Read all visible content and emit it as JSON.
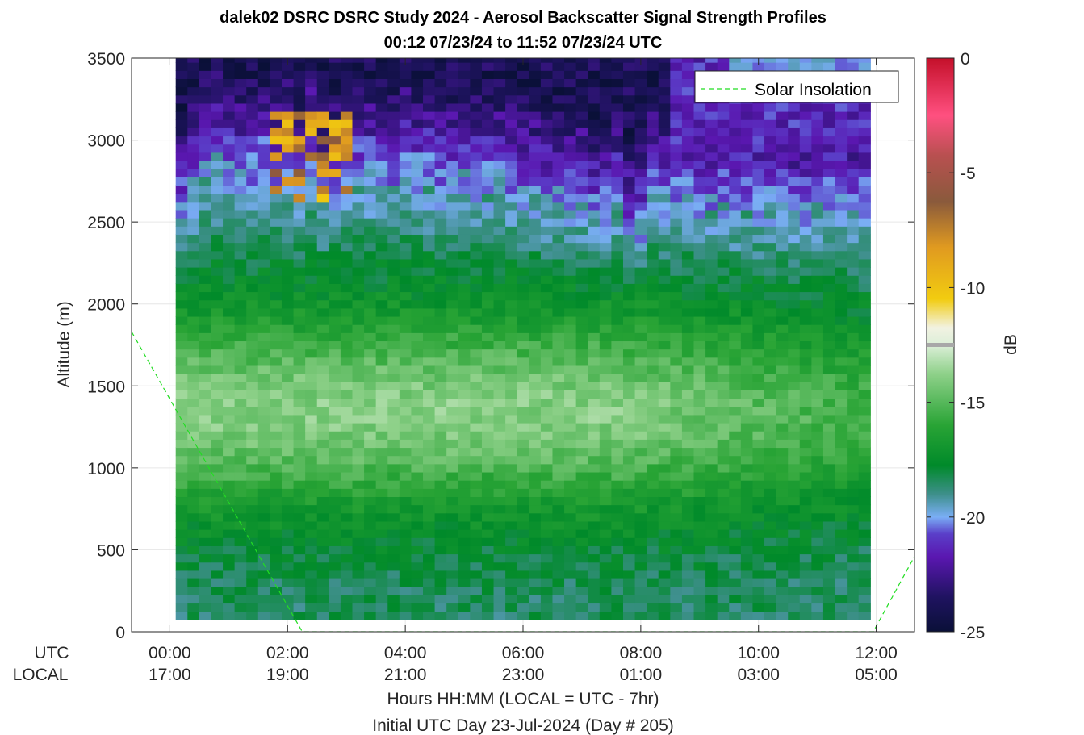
{
  "chart_data": {
    "type": "heatmap",
    "title": "dalek02 DSRC DSRC Study 2024 - Aerosol Backscatter Signal Strength Profiles",
    "subtitle": "00:12 07/23/24 to 11:52 07/23/24  UTC",
    "ylabel": "Altitude (m)",
    "xlabel": "Hours HH:MM  (LOCAL = UTC - 7hr)",
    "xlabel2": "Initial UTC Day 23-Jul-2024 (Day # 205)",
    "colorbar_label": "dB",
    "utc_row_label": "UTC",
    "local_row_label": "LOCAL",
    "x_range_hours": [
      -0.65,
      12.65
    ],
    "ylim": [
      0,
      3500
    ],
    "clim": [
      -25,
      0
    ],
    "y_ticks": [
      "0",
      "500",
      "1000",
      "1500",
      "2000",
      "2500",
      "3000",
      "3500"
    ],
    "y_tick_values": [
      0,
      500,
      1000,
      1500,
      2000,
      2500,
      3000,
      3500
    ],
    "utc_ticks": [
      "00:00",
      "02:00",
      "04:00",
      "06:00",
      "08:00",
      "10:00",
      "12:00"
    ],
    "local_ticks": [
      "17:00",
      "19:00",
      "21:00",
      "23:00",
      "01:00",
      "03:00",
      "05:00"
    ],
    "x_tick_hours": [
      0,
      2,
      4,
      6,
      8,
      10,
      12
    ],
    "colorbar_ticks": [
      "0",
      "-5",
      "-10",
      "-15",
      "-20",
      "-25"
    ],
    "colorbar_tick_values": [
      0,
      -5,
      -10,
      -15,
      -20,
      -25
    ],
    "grid": true,
    "legend": {
      "entry": "Solar Insolation",
      "placement": "top-right",
      "style": "dashed",
      "color": "#22dd22"
    },
    "solar_insolation": {
      "hours": [
        -0.65,
        2.25,
        11.95,
        12.65
      ],
      "altitude_m": [
        1830,
        0,
        0,
        460
      ]
    },
    "backscatter_profile_hours": [
      0.2,
      0.4,
      0.6,
      0.8,
      1.0,
      1.2,
      1.4,
      1.6,
      1.8,
      2.0,
      2.2,
      2.4,
      2.6,
      2.8,
      3.0,
      3.2,
      3.4,
      3.6,
      3.8,
      4.0,
      4.2,
      4.4,
      4.6,
      4.8,
      5.0,
      5.2,
      5.4,
      5.6,
      5.8,
      6.0,
      6.2,
      6.4,
      6.6,
      6.8,
      7.0,
      7.2,
      7.4,
      7.6,
      7.8,
      8.0,
      8.2,
      8.4,
      8.6,
      8.8,
      9.0,
      9.2,
      9.4,
      9.6,
      9.8,
      10.0,
      10.2,
      10.4,
      10.6,
      10.8,
      11.0,
      11.2,
      11.4,
      11.6,
      11.8
    ],
    "boundary_layer_top_m": [
      2500,
      2650,
      2750,
      2800,
      2750,
      2700,
      2700,
      2750,
      2700,
      2750,
      2650,
      2800,
      2600,
      2650,
      2700,
      2700,
      2700,
      2700,
      2650,
      2750,
      2700,
      2700,
      2650,
      2650,
      2700,
      2650,
      2650,
      2650,
      2650,
      2600,
      2600,
      2550,
      2550,
      2500,
      2550,
      2450,
      2500,
      2550,
      2350,
      2400,
      2600,
      2550,
      2550,
      2600,
      2550,
      2550,
      2550,
      2550,
      2550,
      2550,
      2550,
      2550,
      2500,
      2500,
      2550,
      2550,
      2550,
      2500,
      2550
    ],
    "aerosol_layer_peak_dB": -13.5,
    "aerosol_layer_altitude_m": [
      900,
      1800
    ]
  }
}
